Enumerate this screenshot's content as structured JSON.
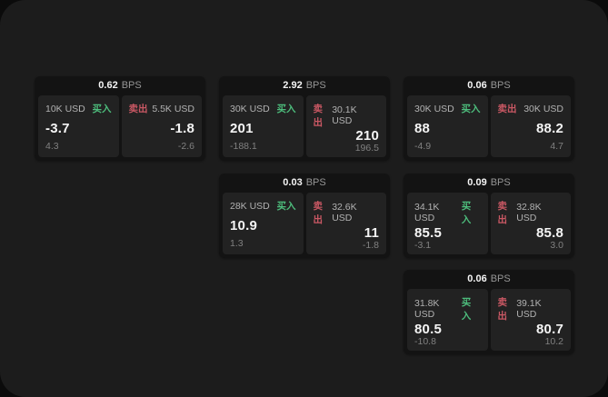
{
  "labels": {
    "bps_unit": "BPS",
    "buy": "买入",
    "sell": "卖出"
  },
  "colors": {
    "page_background": "#0b0b0b",
    "panel_background": "#1c1c1c",
    "card_background": "#131313",
    "tile_background": "#222222",
    "buy_accent": "#4dbd7c",
    "sell_accent": "#ca5864",
    "text_primary": "#f5f5f5",
    "text_secondary": "#b2b2b2",
    "text_muted": "#818181"
  },
  "cards": [
    {
      "bps": "0.62",
      "buy": {
        "amount": "10K USD",
        "price": "-3.7",
        "change": "4.3"
      },
      "sell": {
        "amount": "5.5K USD",
        "price": "-1.8",
        "change": "-2.6"
      }
    },
    {
      "bps": "2.92",
      "buy": {
        "amount": "30K USD",
        "price": "201",
        "change": "-188.1"
      },
      "sell": {
        "amount": "30.1K USD",
        "price": "210",
        "change": "196.5"
      }
    },
    {
      "bps": "0.06",
      "buy": {
        "amount": "30K USD",
        "price": "88",
        "change": "-4.9"
      },
      "sell": {
        "amount": "30K USD",
        "price": "88.2",
        "change": "4.7"
      }
    },
    {
      "bps": "0.03",
      "buy": {
        "amount": "28K USD",
        "price": "10.9",
        "change": "1.3"
      },
      "sell": {
        "amount": "32.6K USD",
        "price": "11",
        "change": "-1.8"
      }
    },
    {
      "bps": "0.09",
      "buy": {
        "amount": "34.1K USD",
        "price": "85.5",
        "change": "-3.1"
      },
      "sell": {
        "amount": "32.8K USD",
        "price": "85.8",
        "change": "3.0"
      }
    },
    {
      "bps": "0.06",
      "buy": {
        "amount": "31.8K USD",
        "price": "80.5",
        "change": "-10.8"
      },
      "sell": {
        "amount": "39.1K USD",
        "price": "80.7",
        "change": "10.2"
      }
    }
  ]
}
